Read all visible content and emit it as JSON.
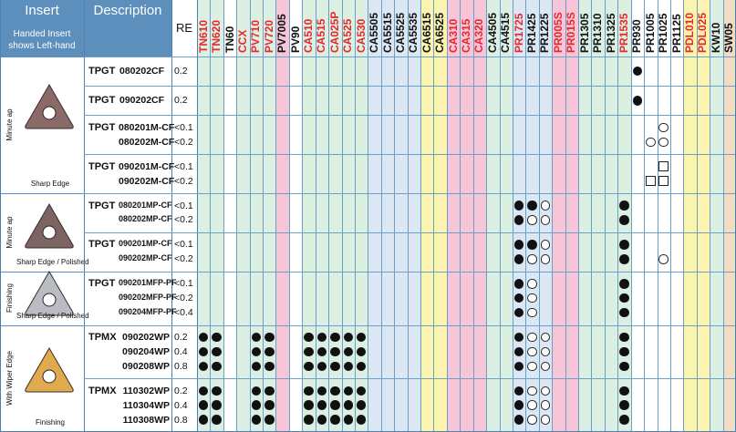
{
  "header": {
    "insert_title": "Insert",
    "insert_note_line1": "Handed Insert",
    "insert_note_line2": "shows Left-hand",
    "description_title": "Description",
    "re_title": "RE"
  },
  "grades": [
    {
      "name": "TN610",
      "color": "#e8262b",
      "bg": "#dcefe3"
    },
    {
      "name": "TN620",
      "color": "#e8262b",
      "bg": "#dcefe3"
    },
    {
      "name": "TN60",
      "color": "#111111",
      "bg": "#ffffff"
    },
    {
      "name": "CCX",
      "color": "#e8262b",
      "bg": "#dcefe3"
    },
    {
      "name": "PV710",
      "color": "#e8262b",
      "bg": "#dcefe3"
    },
    {
      "name": "PV720",
      "color": "#e8262b",
      "bg": "#dcefe3"
    },
    {
      "name": "PV7005",
      "color": "#111111",
      "bg": "#f6c5d8"
    },
    {
      "name": "PV90",
      "color": "#111111",
      "bg": "#ffffff"
    },
    {
      "name": "CA510",
      "color": "#e8262b",
      "bg": "#dcefe3"
    },
    {
      "name": "CA515",
      "color": "#e8262b",
      "bg": "#dcefe3"
    },
    {
      "name": "CA025P",
      "color": "#e8262b",
      "bg": "#dcefe3"
    },
    {
      "name": "CA525",
      "color": "#e8262b",
      "bg": "#dcefe3"
    },
    {
      "name": "CA530",
      "color": "#e8262b",
      "bg": "#dcefe3"
    },
    {
      "name": "CA5505",
      "color": "#111111",
      "bg": "#dbe8f4"
    },
    {
      "name": "CA5515",
      "color": "#111111",
      "bg": "#dbe8f4"
    },
    {
      "name": "CA5525",
      "color": "#111111",
      "bg": "#dbe8f4"
    },
    {
      "name": "CA5535",
      "color": "#111111",
      "bg": "#dbe8f4"
    },
    {
      "name": "CA6515",
      "color": "#111111",
      "bg": "#fbf3b0"
    },
    {
      "name": "CA6525",
      "color": "#111111",
      "bg": "#fbf3b0"
    },
    {
      "name": "CA310",
      "color": "#e8262b",
      "bg": "#f6c5d8"
    },
    {
      "name": "CA315",
      "color": "#e8262b",
      "bg": "#f6c5d8"
    },
    {
      "name": "CA320",
      "color": "#e8262b",
      "bg": "#f6c5d8"
    },
    {
      "name": "CA4505",
      "color": "#111111",
      "bg": "#dcefe3"
    },
    {
      "name": "CA4515",
      "color": "#111111",
      "bg": "#dcefe3"
    },
    {
      "name": "PR1725",
      "color": "#e8262b",
      "bg": "#dbe8f4"
    },
    {
      "name": "PR1425",
      "color": "#111111",
      "bg": "#dbe8f4"
    },
    {
      "name": "PR1225",
      "color": "#111111",
      "bg": "#dbe8f4"
    },
    {
      "name": "PR005S",
      "color": "#e8262b",
      "bg": "#f6c5d8"
    },
    {
      "name": "PR015S",
      "color": "#e8262b",
      "bg": "#f6c5d8"
    },
    {
      "name": "PR1305",
      "color": "#111111",
      "bg": "#dcefe3"
    },
    {
      "name": "PR1310",
      "color": "#111111",
      "bg": "#dcefe3"
    },
    {
      "name": "PR1325",
      "color": "#111111",
      "bg": "#dcefe3"
    },
    {
      "name": "PR1535",
      "color": "#e8262b",
      "bg": "#dcefe3"
    },
    {
      "name": "PR930",
      "color": "#111111",
      "bg": "#ffffff"
    },
    {
      "name": "PR1005",
      "color": "#111111",
      "bg": "#ffffff"
    },
    {
      "name": "PR1025",
      "color": "#111111",
      "bg": "#ffffff"
    },
    {
      "name": "PR1125",
      "color": "#111111",
      "bg": "#ffffff"
    },
    {
      "name": "PDL010",
      "color": "#e8262b",
      "bg": "#fbf3b0"
    },
    {
      "name": "PDL025",
      "color": "#e8262b",
      "bg": "#fbf3b0"
    },
    {
      "name": "KW10",
      "color": "#111111",
      "bg": "#dcefe3"
    },
    {
      "name": "SW05",
      "color": "#111111",
      "bg": "#f2dcc4"
    }
  ],
  "groups": [
    {
      "label": "Minute ap",
      "caption": "Sharp Edge",
      "insert_color": "#8a6a66",
      "hole_color": "#ffffff"
    },
    {
      "label": "Minute ap",
      "caption": "Sharp Edge / Polished",
      "insert_color": "#7b6461",
      "hole_color": "#ffffff"
    },
    {
      "label": "Finishing",
      "caption": "Sharp Edge / Polished",
      "insert_color": "#b9bcc2",
      "hole_color": "#ffffff"
    },
    {
      "label": "With Wiper Edge",
      "caption": "Finishing",
      "insert_color": "#e0aa4f",
      "hole_color": "#ffffff"
    }
  ],
  "rows": [
    {
      "group": 0,
      "series": "TPGT",
      "lines": [
        {
          "code": "080202CF",
          "re": "0.2",
          "marks": [
            [
              33,
              "dot"
            ]
          ]
        }
      ]
    },
    {
      "group": 0,
      "series": "TPGT",
      "lines": [
        {
          "code": "090202CF",
          "re": "0.2",
          "marks": [
            [
              33,
              "dot"
            ]
          ]
        }
      ]
    },
    {
      "group": 0,
      "series": "TPGT",
      "lines": [
        {
          "code": "080201M-CF",
          "re": "<0.1",
          "marks": [
            [
              35,
              "circle"
            ]
          ]
        },
        {
          "code": "080202M-CF",
          "re": "<0.2",
          "marks": [
            [
              34,
              "circle"
            ],
            [
              35,
              "circle"
            ]
          ]
        }
      ]
    },
    {
      "group": 0,
      "series": "TPGT",
      "lines": [
        {
          "code": "090201M-CF",
          "re": "<0.1",
          "marks": [
            [
              35,
              "square"
            ]
          ]
        },
        {
          "code": "090202M-CF",
          "re": "<0.2",
          "marks": [
            [
              34,
              "square"
            ],
            [
              35,
              "square"
            ]
          ]
        }
      ]
    },
    {
      "group": 1,
      "series": "TPGT",
      "lines": [
        {
          "code": "080201MP-CF",
          "re": "<0.1",
          "marks": [
            [
              24,
              "dot"
            ],
            [
              25,
              "dot"
            ],
            [
              26,
              "circle"
            ],
            [
              32,
              "dot"
            ]
          ]
        },
        {
          "code": "080202MP-CF",
          "re": "<0.2",
          "marks": [
            [
              24,
              "dot"
            ],
            [
              25,
              "circle"
            ],
            [
              26,
              "circle"
            ],
            [
              32,
              "dot"
            ]
          ]
        }
      ]
    },
    {
      "group": 1,
      "series": "TPGT",
      "lines": [
        {
          "code": "090201MP-CF",
          "re": "<0.1",
          "marks": [
            [
              24,
              "dot"
            ],
            [
              25,
              "dot"
            ],
            [
              26,
              "circle"
            ],
            [
              32,
              "dot"
            ]
          ]
        },
        {
          "code": "090202MP-CF",
          "re": "<0.2",
          "marks": [
            [
              24,
              "dot"
            ],
            [
              25,
              "circle"
            ],
            [
              26,
              "circle"
            ],
            [
              32,
              "dot"
            ],
            [
              35,
              "circle"
            ]
          ]
        }
      ]
    },
    {
      "group": 2,
      "series": "TPGT",
      "lines": [
        {
          "code": "090201MFP-PF",
          "re": "<0.1",
          "marks": [
            [
              24,
              "dot"
            ],
            [
              25,
              "circle"
            ],
            [
              32,
              "dot"
            ]
          ]
        },
        {
          "code": "090202MFP-PF",
          "re": "<0.2",
          "marks": [
            [
              24,
              "dot"
            ],
            [
              25,
              "circle"
            ],
            [
              32,
              "dot"
            ]
          ]
        },
        {
          "code": "090204MFP-PF",
          "re": "<0.4",
          "marks": [
            [
              24,
              "dot"
            ],
            [
              25,
              "circle"
            ],
            [
              32,
              "dot"
            ]
          ]
        }
      ]
    },
    {
      "group": 3,
      "series": "TPMX",
      "lines": [
        {
          "code": "090202WP",
          "re": "0.2",
          "marks": [
            [
              0,
              "dot"
            ],
            [
              1,
              "dot"
            ],
            [
              4,
              "dot"
            ],
            [
              5,
              "dot"
            ],
            [
              8,
              "dot"
            ],
            [
              9,
              "dot"
            ],
            [
              10,
              "dot"
            ],
            [
              11,
              "dot"
            ],
            [
              12,
              "dot"
            ],
            [
              24,
              "dot"
            ],
            [
              25,
              "circle"
            ],
            [
              26,
              "circle"
            ],
            [
              32,
              "dot"
            ]
          ]
        },
        {
          "code": "090204WP",
          "re": "0.4",
          "marks": [
            [
              0,
              "dot"
            ],
            [
              1,
              "dot"
            ],
            [
              4,
              "dot"
            ],
            [
              5,
              "dot"
            ],
            [
              8,
              "dot"
            ],
            [
              9,
              "dot"
            ],
            [
              10,
              "dot"
            ],
            [
              11,
              "dot"
            ],
            [
              12,
              "dot"
            ],
            [
              24,
              "dot"
            ],
            [
              25,
              "circle"
            ],
            [
              26,
              "circle"
            ],
            [
              32,
              "dot"
            ]
          ]
        },
        {
          "code": "090208WP",
          "re": "0.8",
          "marks": [
            [
              0,
              "dot"
            ],
            [
              1,
              "dot"
            ],
            [
              4,
              "dot"
            ],
            [
              5,
              "dot"
            ],
            [
              8,
              "dot"
            ],
            [
              9,
              "dot"
            ],
            [
              10,
              "dot"
            ],
            [
              11,
              "dot"
            ],
            [
              12,
              "dot"
            ],
            [
              24,
              "dot"
            ],
            [
              25,
              "circle"
            ],
            [
              26,
              "circle"
            ],
            [
              32,
              "dot"
            ]
          ]
        }
      ]
    },
    {
      "group": 3,
      "series": "TPMX",
      "lines": [
        {
          "code": "110302WP",
          "re": "0.2",
          "marks": [
            [
              0,
              "dot"
            ],
            [
              1,
              "dot"
            ],
            [
              4,
              "dot"
            ],
            [
              5,
              "dot"
            ],
            [
              8,
              "dot"
            ],
            [
              9,
              "dot"
            ],
            [
              10,
              "dot"
            ],
            [
              11,
              "dot"
            ],
            [
              12,
              "dot"
            ],
            [
              24,
              "dot"
            ],
            [
              25,
              "circle"
            ],
            [
              26,
              "circle"
            ],
            [
              32,
              "dot"
            ]
          ]
        },
        {
          "code": "110304WP",
          "re": "0.4",
          "marks": [
            [
              0,
              "dot"
            ],
            [
              1,
              "dot"
            ],
            [
              4,
              "dot"
            ],
            [
              5,
              "dot"
            ],
            [
              8,
              "dot"
            ],
            [
              9,
              "dot"
            ],
            [
              10,
              "dot"
            ],
            [
              11,
              "dot"
            ],
            [
              12,
              "dot"
            ],
            [
              24,
              "dot"
            ],
            [
              25,
              "circle"
            ],
            [
              26,
              "circle"
            ],
            [
              32,
              "dot"
            ]
          ]
        },
        {
          "code": "110308WP",
          "re": "0.8",
          "marks": [
            [
              0,
              "dot"
            ],
            [
              1,
              "dot"
            ],
            [
              4,
              "dot"
            ],
            [
              5,
              "dot"
            ],
            [
              8,
              "dot"
            ],
            [
              9,
              "dot"
            ],
            [
              10,
              "dot"
            ],
            [
              11,
              "dot"
            ],
            [
              12,
              "dot"
            ],
            [
              24,
              "dot"
            ],
            [
              25,
              "circle"
            ],
            [
              26,
              "circle"
            ],
            [
              32,
              "dot"
            ]
          ]
        }
      ]
    }
  ]
}
